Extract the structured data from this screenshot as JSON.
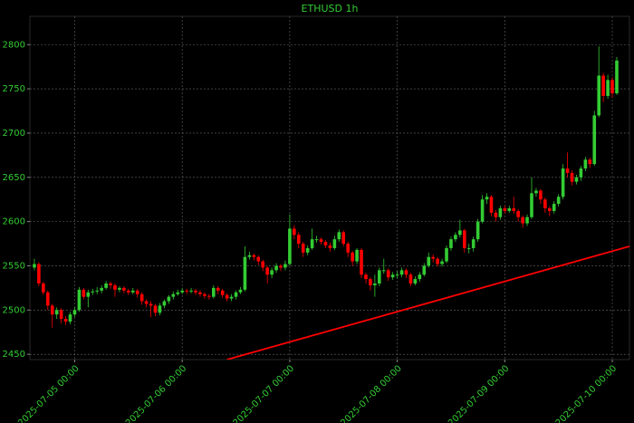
{
  "chart_data": {
    "type": "candlestick",
    "title": "ETHUSD 1h",
    "up_color": "#33cc33",
    "down_color": "#ff0000",
    "grid": true,
    "x": [
      "2025-07-04 15:00",
      "2025-07-04 16:00",
      "2025-07-04 17:00",
      "2025-07-04 18:00",
      "2025-07-04 19:00",
      "2025-07-04 20:00",
      "2025-07-04 21:00",
      "2025-07-04 22:00",
      "2025-07-04 23:00",
      "2025-07-05 00:00",
      "2025-07-05 01:00",
      "2025-07-05 02:00",
      "2025-07-05 03:00",
      "2025-07-05 04:00",
      "2025-07-05 05:00",
      "2025-07-05 06:00",
      "2025-07-05 07:00",
      "2025-07-05 08:00",
      "2025-07-05 09:00",
      "2025-07-05 10:00",
      "2025-07-05 11:00",
      "2025-07-05 12:00",
      "2025-07-05 13:00",
      "2025-07-05 14:00",
      "2025-07-05 15:00",
      "2025-07-05 16:00",
      "2025-07-05 17:00",
      "2025-07-05 18:00",
      "2025-07-05 19:00",
      "2025-07-05 20:00",
      "2025-07-05 21:00",
      "2025-07-05 22:00",
      "2025-07-05 23:00",
      "2025-07-06 00:00",
      "2025-07-06 01:00",
      "2025-07-06 02:00",
      "2025-07-06 03:00",
      "2025-07-06 04:00",
      "2025-07-06 05:00",
      "2025-07-06 06:00",
      "2025-07-06 07:00",
      "2025-07-06 08:00",
      "2025-07-06 09:00",
      "2025-07-06 10:00",
      "2025-07-06 11:00",
      "2025-07-06 12:00",
      "2025-07-06 13:00",
      "2025-07-06 14:00",
      "2025-07-06 15:00",
      "2025-07-06 16:00",
      "2025-07-06 17:00",
      "2025-07-06 18:00",
      "2025-07-06 19:00",
      "2025-07-06 20:00",
      "2025-07-06 21:00",
      "2025-07-06 22:00",
      "2025-07-06 23:00",
      "2025-07-07 00:00",
      "2025-07-07 01:00",
      "2025-07-07 02:00",
      "2025-07-07 03:00",
      "2025-07-07 04:00",
      "2025-07-07 05:00",
      "2025-07-07 06:00",
      "2025-07-07 07:00",
      "2025-07-07 08:00",
      "2025-07-07 09:00",
      "2025-07-07 10:00",
      "2025-07-07 11:00",
      "2025-07-07 12:00",
      "2025-07-07 13:00",
      "2025-07-07 14:00",
      "2025-07-07 15:00",
      "2025-07-07 16:00",
      "2025-07-07 17:00",
      "2025-07-07 18:00",
      "2025-07-07 19:00",
      "2025-07-07 20:00",
      "2025-07-07 21:00",
      "2025-07-07 22:00",
      "2025-07-07 23:00",
      "2025-07-08 00:00",
      "2025-07-08 01:00",
      "2025-07-08 02:00",
      "2025-07-08 03:00",
      "2025-07-08 04:00",
      "2025-07-08 05:00",
      "2025-07-08 06:00",
      "2025-07-08 07:00",
      "2025-07-08 08:00",
      "2025-07-08 09:00",
      "2025-07-08 10:00",
      "2025-07-08 11:00",
      "2025-07-08 12:00",
      "2025-07-08 13:00",
      "2025-07-08 14:00",
      "2025-07-08 15:00",
      "2025-07-08 16:00",
      "2025-07-08 17:00",
      "2025-07-08 18:00",
      "2025-07-08 19:00",
      "2025-07-08 20:00",
      "2025-07-08 21:00",
      "2025-07-08 22:00",
      "2025-07-08 23:00",
      "2025-07-09 00:00",
      "2025-07-09 01:00",
      "2025-07-09 02:00",
      "2025-07-09 03:00",
      "2025-07-09 04:00",
      "2025-07-09 05:00",
      "2025-07-09 06:00",
      "2025-07-09 07:00",
      "2025-07-09 08:00",
      "2025-07-09 09:00",
      "2025-07-09 10:00",
      "2025-07-09 11:00",
      "2025-07-09 12:00",
      "2025-07-09 13:00",
      "2025-07-09 14:00",
      "2025-07-09 15:00",
      "2025-07-09 16:00",
      "2025-07-09 17:00",
      "2025-07-09 18:00",
      "2025-07-09 19:00",
      "2025-07-09 20:00",
      "2025-07-09 21:00",
      "2025-07-09 22:00",
      "2025-07-09 23:00",
      "2025-07-10 00:00",
      "2025-07-10 01:00"
    ],
    "open": [
      2548,
      2552,
      2530,
      2520,
      2505,
      2495,
      2500,
      2490,
      2487,
      2495,
      2500,
      2523,
      2515,
      2520,
      2521,
      2522,
      2525,
      2530,
      2528,
      2523,
      2525,
      2522,
      2520,
      2522,
      2518,
      2510,
      2507,
      2505,
      2497,
      2505,
      2510,
      2515,
      2518,
      2520,
      2522,
      2521,
      2522,
      2520,
      2518,
      2516,
      2515,
      2525,
      2522,
      2517,
      2513,
      2515,
      2520,
      2523,
      2560,
      2562,
      2560,
      2555,
      2548,
      2540,
      2545,
      2550,
      2548,
      2552,
      2592,
      2585,
      2575,
      2565,
      2570,
      2580,
      2580,
      2577,
      2573,
      2570,
      2580,
      2588,
      2575,
      2565,
      2555,
      2568,
      2540,
      2535,
      2528,
      2530,
      2545,
      2545,
      2537,
      2540,
      2540,
      2545,
      2540,
      2530,
      2535,
      2540,
      2550,
      2560,
      2558,
      2552,
      2555,
      2570,
      2580,
      2585,
      2590,
      2570,
      2570,
      2580,
      2600,
      2625,
      2628,
      2610,
      2605,
      2615,
      2612,
      2615,
      2612,
      2605,
      2598,
      2605,
      2632,
      2635,
      2625,
      2615,
      2612,
      2620,
      2628,
      2660,
      2655,
      2645,
      2650,
      2660,
      2670,
      2665,
      2720,
      2765,
      2742,
      2760,
      2745
    ],
    "high": [
      2558,
      2554,
      2532,
      2522,
      2507,
      2503,
      2502,
      2493,
      2498,
      2503,
      2526,
      2525,
      2523,
      2524,
      2526,
      2528,
      2533,
      2532,
      2530,
      2527,
      2527,
      2524,
      2525,
      2524,
      2520,
      2512,
      2510,
      2507,
      2508,
      2512,
      2517,
      2521,
      2523,
      2525,
      2524,
      2525,
      2524,
      2522,
      2520,
      2518,
      2528,
      2527,
      2524,
      2519,
      2518,
      2522,
      2526,
      2572,
      2566,
      2564,
      2562,
      2557,
      2550,
      2548,
      2553,
      2552,
      2556,
      2608,
      2596,
      2588,
      2577,
      2573,
      2592,
      2584,
      2582,
      2579,
      2576,
      2584,
      2591,
      2590,
      2577,
      2567,
      2570,
      2570,
      2542,
      2537,
      2540,
      2548,
      2558,
      2547,
      2543,
      2544,
      2548,
      2547,
      2542,
      2538,
      2543,
      2553,
      2565,
      2563,
      2560,
      2558,
      2573,
      2583,
      2588,
      2602,
      2592,
      2575,
      2583,
      2603,
      2630,
      2632,
      2630,
      2613,
      2618,
      2618,
      2618,
      2628,
      2614,
      2607,
      2608,
      2650,
      2638,
      2637,
      2627,
      2617,
      2623,
      2631,
      2665,
      2678,
      2658,
      2653,
      2663,
      2673,
      2672,
      2725,
      2798,
      2768,
      2766,
      2763,
      2786
    ],
    "low": [
      2545,
      2527,
      2517,
      2500,
      2480,
      2490,
      2485,
      2483,
      2484,
      2492,
      2498,
      2512,
      2503,
      2517,
      2518,
      2519,
      2523,
      2524,
      2515,
      2520,
      2519,
      2517,
      2518,
      2514,
      2506,
      2503,
      2492,
      2493,
      2494,
      2502,
      2507,
      2512,
      2516,
      2518,
      2518,
      2519,
      2517,
      2515,
      2513,
      2512,
      2513,
      2518,
      2514,
      2510,
      2510,
      2512,
      2518,
      2521,
      2557,
      2556,
      2551,
      2544,
      2530,
      2536,
      2542,
      2544,
      2545,
      2550,
      2580,
      2570,
      2560,
      2562,
      2568,
      2576,
      2574,
      2570,
      2566,
      2568,
      2577,
      2572,
      2560,
      2550,
      2552,
      2536,
      2530,
      2522,
      2515,
      2527,
      2541,
      2533,
      2534,
      2536,
      2537,
      2536,
      2527,
      2528,
      2532,
      2538,
      2548,
      2554,
      2549,
      2549,
      2553,
      2567,
      2577,
      2582,
      2565,
      2564,
      2566,
      2577,
      2598,
      2620,
      2606,
      2600,
      2602,
      2609,
      2610,
      2609,
      2600,
      2593,
      2595,
      2603,
      2628,
      2620,
      2610,
      2606,
      2609,
      2617,
      2625,
      2650,
      2641,
      2642,
      2646,
      2657,
      2661,
      2663,
      2718,
      2735,
      2739,
      2740,
      2743
    ],
    "close": [
      2552,
      2530,
      2520,
      2505,
      2495,
      2500,
      2490,
      2487,
      2495,
      2500,
      2523,
      2515,
      2520,
      2521,
      2522,
      2525,
      2530,
      2528,
      2523,
      2525,
      2522,
      2520,
      2522,
      2518,
      2510,
      2507,
      2505,
      2497,
      2505,
      2510,
      2515,
      2518,
      2520,
      2522,
      2521,
      2522,
      2520,
      2518,
      2516,
      2515,
      2525,
      2522,
      2517,
      2513,
      2515,
      2520,
      2523,
      2560,
      2562,
      2560,
      2555,
      2548,
      2540,
      2545,
      2550,
      2548,
      2552,
      2592,
      2585,
      2575,
      2565,
      2570,
      2580,
      2580,
      2577,
      2573,
      2570,
      2580,
      2588,
      2575,
      2565,
      2555,
      2568,
      2540,
      2535,
      2528,
      2530,
      2545,
      2545,
      2537,
      2540,
      2540,
      2545,
      2540,
      2530,
      2535,
      2540,
      2550,
      2560,
      2558,
      2552,
      2555,
      2570,
      2580,
      2585,
      2590,
      2570,
      2570,
      2580,
      2600,
      2625,
      2628,
      2610,
      2605,
      2615,
      2612,
      2615,
      2612,
      2605,
      2598,
      2605,
      2632,
      2635,
      2625,
      2615,
      2612,
      2620,
      2628,
      2660,
      2655,
      2645,
      2650,
      2660,
      2670,
      2665,
      2720,
      2765,
      2742,
      2760,
      2745,
      2782
    ],
    "xlim": [
      "2025-07-04 14:00",
      "2025-07-10 03:50"
    ],
    "xticks": [
      "2025-07-05 00:00",
      "2025-07-06 00:00",
      "2025-07-07 00:00",
      "2025-07-08 00:00",
      "2025-07-09 00:00",
      "2025-07-10 00:00"
    ],
    "ylim": [
      2444,
      2832
    ],
    "yticks": [
      2450,
      2500,
      2550,
      2600,
      2650,
      2700,
      2750,
      2800
    ],
    "lines": [
      {
        "color": "#ff0000",
        "x": [
          "2025-07-06 10:00",
          "2025-07-10 03:50"
        ],
        "y": [
          2444,
          2572
        ]
      }
    ]
  }
}
